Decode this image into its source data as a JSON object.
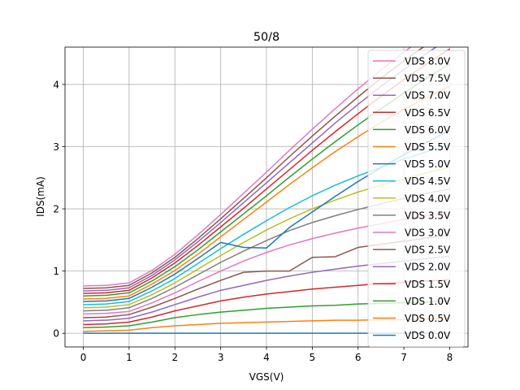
{
  "chart_data": {
    "type": "line",
    "title": "50/8",
    "xlabel": "VGS(V)",
    "ylabel": "IDS(mA)",
    "xlim": [
      -0.4,
      8.4
    ],
    "ylim": [
      -0.22,
      4.6
    ],
    "xticks": [
      0,
      1,
      2,
      3,
      4,
      5,
      6,
      7,
      8
    ],
    "yticks": [
      0,
      1,
      2,
      3,
      4
    ],
    "grid": true,
    "legend_position": "upper-right",
    "x": [
      0,
      0.5,
      1,
      1.5,
      2,
      2.5,
      3,
      3.5,
      4,
      4.5,
      5,
      5.5,
      6,
      6.5,
      7,
      7.5,
      8
    ],
    "series": [
      {
        "name": "VDS 0.0V",
        "color": "#1f77b4",
        "values": [
          0,
          0,
          0,
          0,
          0,
          0,
          0,
          0,
          0,
          0,
          0,
          0,
          0,
          0,
          0,
          0,
          0
        ]
      },
      {
        "name": "VDS 0.5V",
        "color": "#ff7f0e",
        "values": [
          0.03,
          0.04,
          0.05,
          0.09,
          0.12,
          0.14,
          0.16,
          0.17,
          0.18,
          0.19,
          0.2,
          0.21,
          0.21,
          0.22,
          0.22,
          0.23,
          0.24
        ]
      },
      {
        "name": "VDS 1.0V",
        "color": "#2ca02c",
        "values": [
          0.09,
          0.1,
          0.12,
          0.18,
          0.25,
          0.3,
          0.34,
          0.37,
          0.4,
          0.42,
          0.44,
          0.45,
          0.47,
          0.48,
          0.49,
          0.5,
          0.52
        ]
      },
      {
        "name": "VDS 1.5V",
        "color": "#d62728",
        "values": [
          0.14,
          0.15,
          0.18,
          0.26,
          0.36,
          0.44,
          0.52,
          0.58,
          0.63,
          0.67,
          0.71,
          0.74,
          0.77,
          0.8,
          0.82,
          0.84,
          0.86
        ]
      },
      {
        "name": "VDS 2.0V",
        "color": "#9467bd",
        "values": [
          0.2,
          0.21,
          0.24,
          0.34,
          0.46,
          0.58,
          0.69,
          0.77,
          0.85,
          0.92,
          0.98,
          1.03,
          1.08,
          1.12,
          1.16,
          1.2,
          1.24
        ]
      },
      {
        "name": "VDS 2.5V",
        "color": "#8c564b",
        "values": [
          0.25,
          0.26,
          0.3,
          0.42,
          0.56,
          0.71,
          0.85,
          0.98,
          1.0,
          1.0,
          1.22,
          1.23,
          1.38,
          1.43,
          1.48,
          1.53,
          1.58
        ]
      },
      {
        "name": "VDS 3.0V",
        "color": "#e377c2",
        "values": [
          0.31,
          0.32,
          0.35,
          0.49,
          0.65,
          0.83,
          1.0,
          1.16,
          1.3,
          1.42,
          1.52,
          1.61,
          1.69,
          1.76,
          1.83,
          1.89,
          1.95
        ]
      },
      {
        "name": "VDS 3.5V",
        "color": "#7f7f7f",
        "values": [
          0.36,
          0.37,
          0.41,
          0.56,
          0.74,
          0.94,
          1.14,
          1.32,
          1.49,
          1.65,
          1.78,
          1.89,
          1.99,
          2.08,
          2.17,
          2.25,
          2.32
        ]
      },
      {
        "name": "VDS 4.0V",
        "color": "#bcbd22",
        "values": [
          0.41,
          0.42,
          0.46,
          0.62,
          0.81,
          1.03,
          1.25,
          1.46,
          1.66,
          1.84,
          2.0,
          2.14,
          2.27,
          2.38,
          2.48,
          2.58,
          2.67
        ]
      },
      {
        "name": "VDS 4.5V",
        "color": "#17becf",
        "values": [
          0.46,
          0.47,
          0.51,
          0.68,
          0.88,
          1.12,
          1.36,
          1.59,
          1.81,
          2.02,
          2.21,
          2.38,
          2.53,
          2.67,
          2.8,
          2.92,
          3.03
        ]
      },
      {
        "name": "VDS 5.0V",
        "color": "#1f77b4",
        "values": [
          0.51,
          0.52,
          0.56,
          0.74,
          0.95,
          1.2,
          1.46,
          1.38,
          1.37,
          1.7,
          1.95,
          2.2,
          2.44,
          2.66,
          2.87,
          3.07,
          3.26
        ]
      },
      {
        "name": "VDS 5.5V",
        "color": "#ff7f0e",
        "values": [
          0.55,
          0.56,
          0.6,
          0.79,
          1.01,
          1.27,
          1.55,
          1.83,
          2.11,
          2.39,
          2.66,
          2.92,
          3.16,
          3.39,
          3.6,
          3.79,
          3.97
        ]
      },
      {
        "name": "VDS 6.0V",
        "color": "#2ca02c",
        "values": [
          0.6,
          0.61,
          0.65,
          0.84,
          1.07,
          1.34,
          1.63,
          1.92,
          2.21,
          2.51,
          2.8,
          3.08,
          3.35,
          3.61,
          3.86,
          4.1,
          4.33
        ]
      },
      {
        "name": "VDS 6.5V",
        "color": "#d62728",
        "values": [
          0.64,
          0.65,
          0.69,
          0.89,
          1.13,
          1.41,
          1.71,
          2.01,
          2.32,
          2.63,
          2.94,
          3.24,
          3.53,
          3.81,
          4.08,
          4.33,
          4.57
        ]
      },
      {
        "name": "VDS 7.0V",
        "color": "#9467bd",
        "values": [
          0.68,
          0.69,
          0.73,
          0.93,
          1.18,
          1.47,
          1.78,
          2.1,
          2.42,
          2.74,
          3.06,
          3.38,
          3.68,
          3.97,
          4.24,
          4.5,
          4.75
        ]
      },
      {
        "name": "VDS 7.5V",
        "color": "#8c564b",
        "values": [
          0.72,
          0.73,
          0.77,
          0.97,
          1.22,
          1.52,
          1.84,
          2.17,
          2.5,
          2.84,
          3.17,
          3.49,
          3.8,
          4.1,
          4.38,
          4.64,
          4.89
        ]
      },
      {
        "name": "VDS 8.0V",
        "color": "#e377c2",
        "values": [
          0.76,
          0.77,
          0.81,
          1.01,
          1.27,
          1.58,
          1.91,
          2.25,
          2.59,
          2.94,
          3.28,
          3.61,
          3.93,
          4.23,
          4.52,
          4.79,
          5.04
        ]
      }
    ]
  }
}
